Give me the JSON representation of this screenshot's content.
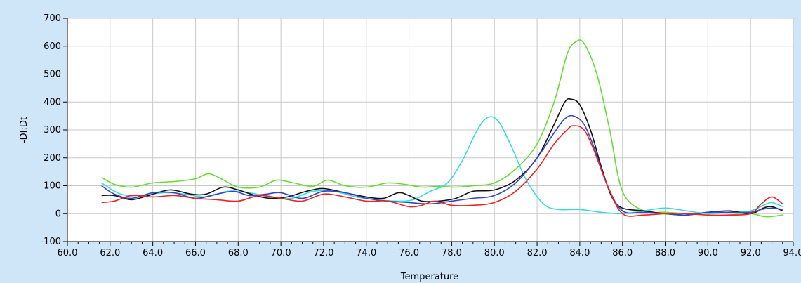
{
  "chart_data": {
    "type": "line",
    "title": "",
    "xlabel": "Temperature",
    "ylabel": "-DI:Dt",
    "xlim": [
      60.0,
      94.0
    ],
    "ylim": [
      -100,
      700
    ],
    "x_ticks": [
      "60.0",
      "62.0",
      "64.0",
      "66.0",
      "68.0",
      "70.0",
      "72.0",
      "74.0",
      "76.0",
      "78.0",
      "80.0",
      "82.0",
      "84.0",
      "86.0",
      "88.0",
      "90.0",
      "92.0",
      "94.0"
    ],
    "y_ticks": [
      "-100",
      "0",
      "100",
      "200",
      "300",
      "400",
      "500",
      "600",
      "700"
    ],
    "x_tick_values": [
      60,
      62,
      64,
      66,
      68,
      70,
      72,
      74,
      76,
      78,
      80,
      82,
      84,
      86,
      88,
      90,
      92,
      94
    ],
    "y_tick_values": [
      -100,
      0,
      100,
      200,
      300,
      400,
      500,
      600,
      700
    ],
    "grid": true,
    "background": "#cfe6f8",
    "plot_background": "#ffffff",
    "series": [
      {
        "color": "#66dd33",
        "x": [
          61.6,
          62.2,
          63.0,
          64.0,
          65.0,
          66.0,
          66.6,
          67.2,
          68.0,
          69.0,
          69.8,
          70.6,
          71.5,
          72.2,
          73.0,
          74.0,
          75.0,
          75.8,
          76.6,
          77.4,
          78.2,
          79.0,
          80.0,
          81.0,
          82.0,
          82.8,
          83.4,
          83.8,
          84.2,
          84.8,
          85.4,
          86.0,
          87.0,
          88.0,
          89.0,
          90.0,
          91.0,
          92.0,
          92.6,
          93.0,
          93.5
        ],
        "y": [
          130,
          105,
          95,
          110,
          115,
          125,
          143,
          125,
          95,
          95,
          120,
          110,
          98,
          120,
          100,
          95,
          110,
          105,
          95,
          98,
          95,
          100,
          110,
          160,
          250,
          400,
          570,
          615,
          610,
          500,
          300,
          80,
          10,
          5,
          0,
          -5,
          -5,
          0,
          -10,
          -10,
          -5
        ]
      },
      {
        "color": "#33dddd",
        "x": [
          61.6,
          62.5,
          63.5,
          64.5,
          65.5,
          66.5,
          67.5,
          68.5,
          69.5,
          70.5,
          71.5,
          72.5,
          73.5,
          74.5,
          75.5,
          76.2,
          77.0,
          77.8,
          78.5,
          79.2,
          79.7,
          80.2,
          80.8,
          81.5,
          82.3,
          83.0,
          84.0,
          85.0,
          86.0,
          87.0,
          88.0,
          89.0,
          90.0,
          91.0,
          92.0,
          92.6,
          93.0,
          93.5
        ],
        "y": [
          110,
          70,
          65,
          75,
          70,
          60,
          80,
          75,
          60,
          55,
          80,
          80,
          60,
          50,
          45,
          50,
          80,
          110,
          190,
          300,
          345,
          330,
          240,
          120,
          35,
          15,
          15,
          5,
          0,
          10,
          20,
          10,
          0,
          5,
          10,
          30,
          40,
          25
        ]
      },
      {
        "color": "#111111",
        "x": [
          61.6,
          62.2,
          63.0,
          63.8,
          64.8,
          65.8,
          66.5,
          67.3,
          68.0,
          68.8,
          69.5,
          70.3,
          71.2,
          72.0,
          73.0,
          74.0,
          74.8,
          75.5,
          76.0,
          76.6,
          77.4,
          78.2,
          79.0,
          80.0,
          81.0,
          82.0,
          82.8,
          83.3,
          83.6,
          84.0,
          84.5,
          85.0,
          85.5,
          86.0,
          87.0,
          88.0,
          89.0,
          90.0,
          91.0,
          92.0,
          92.6,
          93.0,
          93.5
        ],
        "y": [
          65,
          65,
          50,
          65,
          85,
          70,
          70,
          95,
          85,
          65,
          55,
          60,
          80,
          90,
          75,
          60,
          55,
          75,
          65,
          45,
          45,
          55,
          80,
          85,
          120,
          200,
          320,
          400,
          410,
          390,
          300,
          170,
          60,
          20,
          10,
          0,
          -5,
          5,
          10,
          0,
          20,
          25,
          10
        ]
      },
      {
        "color": "#3344cc",
        "x": [
          61.6,
          62.2,
          63.0,
          64.0,
          65.0,
          66.0,
          67.0,
          67.8,
          68.5,
          69.3,
          70.0,
          71.0,
          72.0,
          73.0,
          74.0,
          75.0,
          76.0,
          77.0,
          78.0,
          79.0,
          80.0,
          81.0,
          82.0,
          82.8,
          83.3,
          83.7,
          84.2,
          84.7,
          85.3,
          86.0,
          87.0,
          88.0,
          89.0,
          90.0,
          91.0,
          92.0,
          92.5,
          93.0,
          93.5
        ],
        "y": [
          100,
          70,
          55,
          75,
          75,
          55,
          70,
          80,
          65,
          70,
          75,
          55,
          80,
          75,
          55,
          45,
          40,
          35,
          45,
          55,
          65,
          110,
          200,
          290,
          340,
          350,
          320,
          230,
          100,
          10,
          5,
          0,
          -5,
          5,
          5,
          5,
          15,
          20,
          15
        ]
      },
      {
        "color": "#ee2222",
        "x": [
          61.6,
          62.2,
          63.0,
          64.0,
          65.0,
          66.0,
          67.0,
          68.0,
          69.0,
          70.0,
          71.0,
          72.0,
          73.0,
          74.0,
          75.0,
          76.0,
          76.6,
          77.2,
          78.0,
          79.0,
          80.0,
          81.0,
          82.0,
          82.8,
          83.4,
          83.7,
          84.2,
          84.7,
          85.3,
          86.0,
          87.0,
          88.0,
          89.0,
          90.0,
          91.0,
          92.0,
          92.5,
          93.0,
          93.5
        ],
        "y": [
          40,
          45,
          65,
          60,
          65,
          55,
          50,
          45,
          65,
          55,
          45,
          70,
          60,
          45,
          45,
          25,
          30,
          45,
          30,
          30,
          40,
          80,
          160,
          250,
          300,
          315,
          300,
          220,
          100,
          0,
          -5,
          0,
          0,
          -5,
          -5,
          0,
          35,
          60,
          35
        ]
      }
    ]
  }
}
